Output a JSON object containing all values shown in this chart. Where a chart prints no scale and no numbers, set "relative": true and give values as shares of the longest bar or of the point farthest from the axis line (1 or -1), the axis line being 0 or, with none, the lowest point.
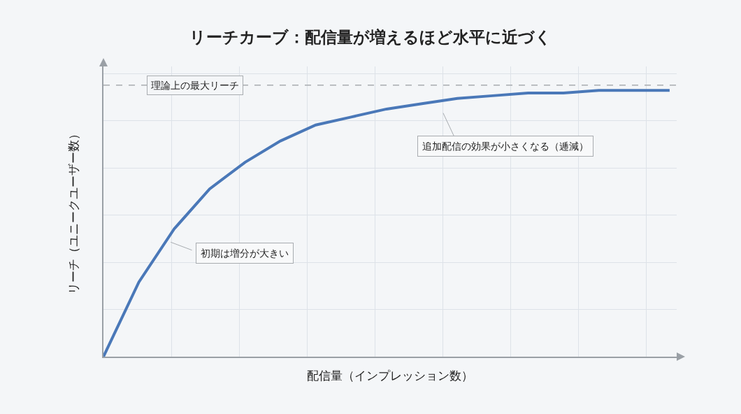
{
  "chart_data": {
    "type": "line",
    "title": "リーチカーブ：配信量が増えるほど水平に近づく",
    "xlabel": "配信量（インプレッション数）",
    "ylabel": "リーチ（ユニークユーザー数）",
    "relative": true,
    "grid": true,
    "legend": false,
    "marker": "none",
    "line_style": "solid",
    "categories": [
      null,
      null,
      null,
      null,
      null,
      null,
      null,
      null,
      null,
      null,
      null,
      null,
      null,
      null,
      null,
      null,
      null
    ],
    "series": [
      {
        "color": "#4a78b8",
        "values": [
          0,
          0.28,
          0.48,
          0.63,
          0.73,
          0.81,
          0.87,
          0.9,
          0.93,
          0.95,
          0.97,
          0.98,
          0.99,
          0.99,
          1,
          1,
          1
        ]
      }
    ],
    "ref_lines": [
      {
        "axis": "y",
        "value": 1.02,
        "label": "理論上の最大リーチ",
        "line_style": "dashed",
        "color": "#a8acb0"
      }
    ],
    "annotations": [
      "初期は増分が大きい",
      "追加配信の効果が小さくなる（逓減）"
    ]
  }
}
